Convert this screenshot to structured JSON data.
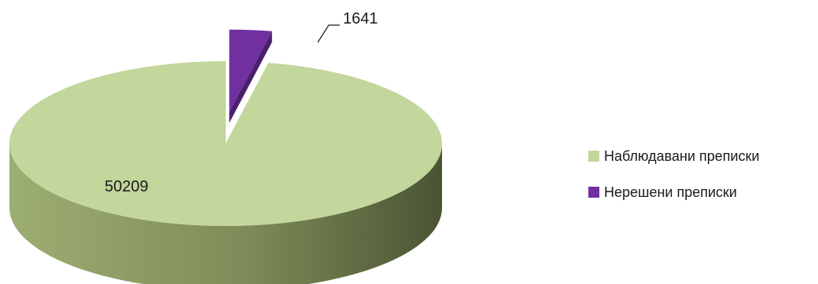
{
  "chart_data": {
    "type": "pie",
    "style": "3d-exploded",
    "title": "",
    "legend_position": "right",
    "slices": [
      {
        "name": "Наблюдавани преписки",
        "value": 50209,
        "color": "#c3d69b",
        "side_color": "#8a9a62"
      },
      {
        "name": "Нерешени преписки",
        "value": 1641,
        "color": "#7030a0",
        "side_color": "#4b1f6e"
      }
    ]
  }
}
